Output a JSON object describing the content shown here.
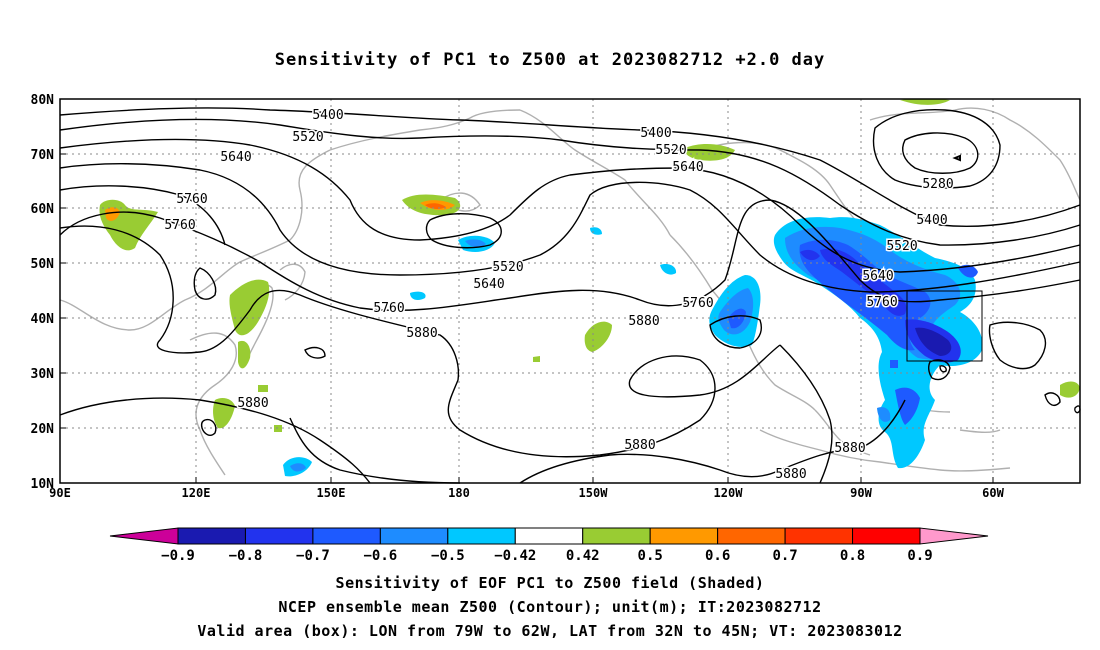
{
  "title": "Sensitivity of PC1 to Z500 at 2023082712 +2.0 day",
  "lat_labels": [
    "80N",
    "70N",
    "60N",
    "50N",
    "40N",
    "30N",
    "20N",
    "10N"
  ],
  "lon_labels": [
    "90E",
    "120E",
    "150E",
    "180",
    "150W",
    "120W",
    "90W",
    "60W"
  ],
  "contour_labels": [
    {
      "text": "5400"
    },
    {
      "text": "5520"
    },
    {
      "text": "5640"
    },
    {
      "text": "5760"
    },
    {
      "text": "5760"
    },
    {
      "text": "5880"
    },
    {
      "text": "5760"
    },
    {
      "text": "5520"
    },
    {
      "text": "5640"
    },
    {
      "text": "5880"
    },
    {
      "text": "5400"
    },
    {
      "text": "5520"
    },
    {
      "text": "5640"
    },
    {
      "text": "5280"
    },
    {
      "text": "5400"
    },
    {
      "text": "5520"
    },
    {
      "text": "5640"
    },
    {
      "text": "5760"
    },
    {
      "text": "5760"
    },
    {
      "text": "5880"
    },
    {
      "text": "5880"
    },
    {
      "text": "5880"
    },
    {
      "text": "5880"
    }
  ],
  "colorbar": {
    "ticks": [
      "−0.9",
      "−0.8",
      "−0.7",
      "−0.6",
      "−0.5",
      "−0.42",
      "0.42",
      "0.5",
      "0.6",
      "0.7",
      "0.8",
      "0.9"
    ],
    "colors": [
      "#1a1ab0",
      "#2233ee",
      "#1e5aff",
      "#1e8cff",
      "#00c8ff",
      "#ffffff",
      "#99cc33",
      "#ff9900",
      "#ff6600",
      "#ff3300",
      "#ff0000"
    ],
    "low_extend_color": "#cc0099",
    "high_extend_color": "#ff99cc"
  },
  "caption": {
    "line1": "Sensitivity of EOF PC1 to Z500 field (Shaded)",
    "line2": "NCEP ensemble mean Z500 (Contour); unit(m); IT:2023082712",
    "line3": "Valid area (box): LON from 79W to 62W, LAT from 32N to 45N; VT: 2023083012"
  }
}
